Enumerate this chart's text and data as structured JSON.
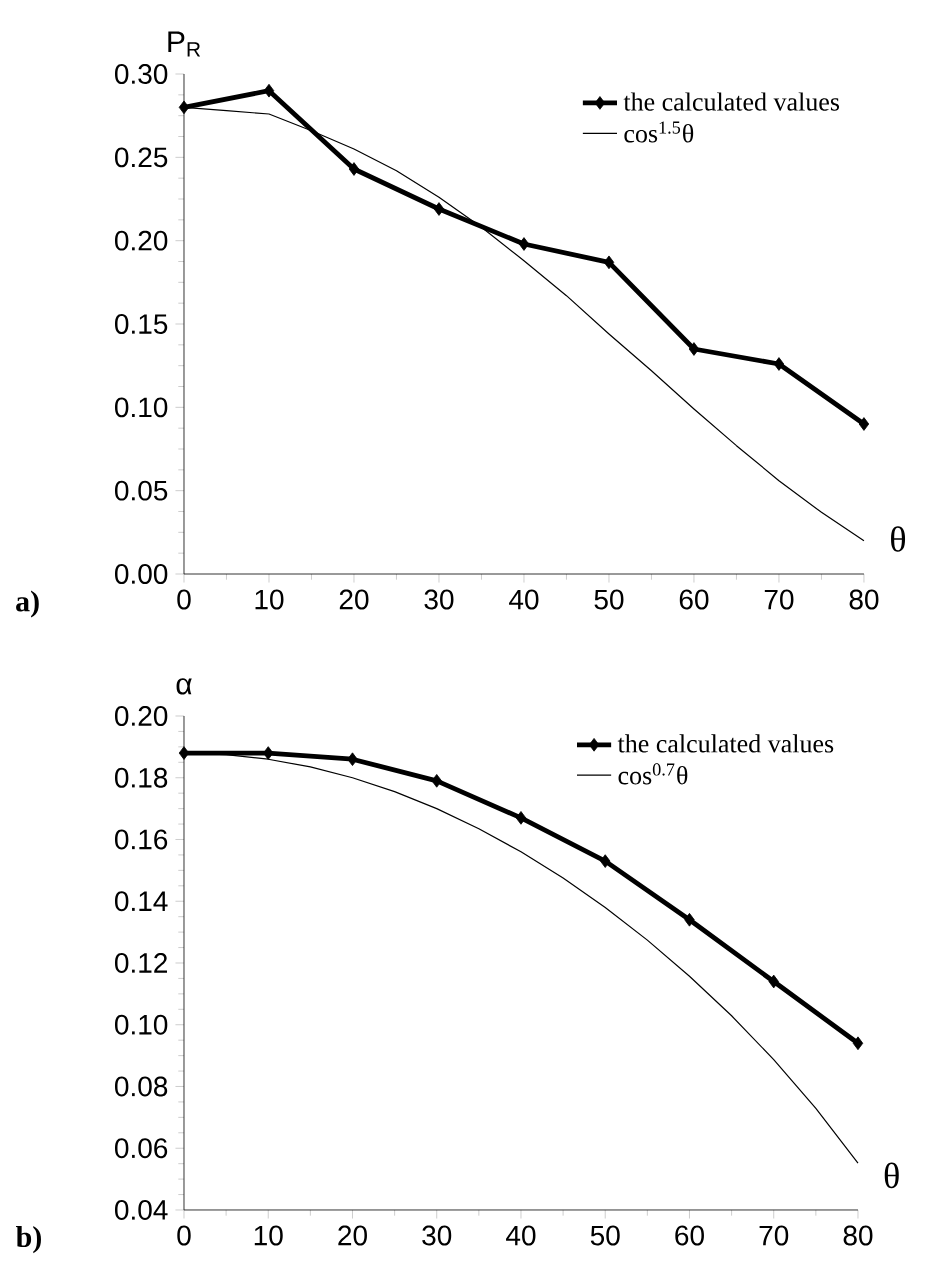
{
  "chart_data": [
    {
      "type": "line",
      "xlabel": "θ",
      "ylabel": "P$_{R}$",
      "annotations": [
        "a)"
      ],
      "xlim": [
        0,
        80
      ],
      "ylim": [
        0,
        0.3
      ],
      "xticks": [
        0,
        10,
        20,
        30,
        40,
        50,
        60,
        70,
        80
      ],
      "yticks": [
        {
          "value": 0,
          "label": "0.00"
        },
        {
          "value": 0.05,
          "label": "0.05"
        },
        {
          "value": 0.1,
          "label": "0.10"
        },
        {
          "value": 0.15,
          "label": "0.15"
        },
        {
          "value": 0.2,
          "label": "0.20"
        },
        {
          "value": 0.25,
          "label": "0.25"
        },
        {
          "value": 0.3,
          "label": "0.30"
        }
      ],
      "legend": "top right",
      "grid": false,
      "series": [
        {
          "name": "the calculated values",
          "color": "#000000",
          "marker": "diamond",
          "x": [
            0,
            10,
            20,
            30,
            40,
            50,
            60,
            70,
            80
          ],
          "values": [
            0.28,
            0.29,
            0.243,
            0.219,
            0.198,
            0.187,
            0.135,
            0.126,
            0.09
          ]
        },
        {
          "name": "cos$^{1.5}$θ",
          "color": "#000000",
          "marker": "none",
          "x": [
            0,
            5,
            10,
            15,
            20,
            25,
            30,
            35,
            40,
            45,
            50,
            55,
            60,
            65,
            70,
            75,
            80
          ],
          "values": [
            0.28,
            0.278,
            0.276,
            0.266,
            0.255,
            0.242,
            0.226,
            0.208,
            0.188,
            0.167,
            0.144,
            0.122,
            0.099,
            0.077,
            0.056,
            0.037,
            0.02
          ]
        }
      ]
    },
    {
      "type": "line",
      "xlabel": "θ",
      "ylabel": "α",
      "annotations": [
        "b)"
      ],
      "xlim": [
        0,
        80
      ],
      "ylim": [
        0.04,
        0.2
      ],
      "xticks": [
        0,
        10,
        20,
        30,
        40,
        50,
        60,
        70,
        80
      ],
      "yticks": [
        {
          "value": 0.04,
          "label": "0.04"
        },
        {
          "value": 0.06,
          "label": "0.06"
        },
        {
          "value": 0.08,
          "label": "0.08"
        },
        {
          "value": 0.1,
          "label": "0.10"
        },
        {
          "value": 0.12,
          "label": "0.12"
        },
        {
          "value": 0.14,
          "label": "0.14"
        },
        {
          "value": 0.16,
          "label": "0.16"
        },
        {
          "value": 0.18,
          "label": "0.18"
        },
        {
          "value": 0.2,
          "label": "0.20"
        }
      ],
      "legend": "top right",
      "grid": false,
      "series": [
        {
          "name": "the calculated values",
          "color": "#000000",
          "marker": "diamond",
          "x": [
            0,
            10,
            20,
            30,
            40,
            50,
            60,
            70,
            80
          ],
          "values": [
            0.188,
            0.188,
            0.186,
            0.179,
            0.167,
            0.153,
            0.134,
            0.114,
            0.094
          ]
        },
        {
          "name": "cos$^{0.7}$θ",
          "color": "#000000",
          "marker": "none",
          "x": [
            0,
            5,
            10,
            15,
            20,
            25,
            30,
            35,
            40,
            45,
            50,
            55,
            60,
            65,
            70,
            75,
            80
          ],
          "values": [
            0.188,
            0.1875,
            0.186,
            0.1835,
            0.18,
            0.1755,
            0.17,
            0.1635,
            0.156,
            0.1475,
            0.138,
            0.1274,
            0.1157,
            0.1029,
            0.0887,
            0.0729,
            0.0552
          ]
        }
      ]
    }
  ]
}
